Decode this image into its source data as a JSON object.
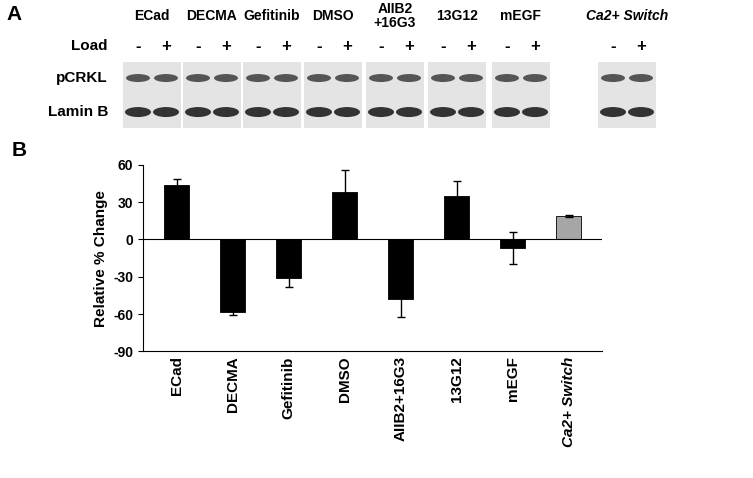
{
  "blot": {
    "panel_label": "A",
    "lanes": [
      "ECad",
      "DECMA",
      "Gefitinib",
      "DMSO",
      "AIIB2\n+16G3",
      "13G12",
      "mEGF",
      "Ca2+ Switch"
    ],
    "load_label": "Load",
    "load_states": [
      "-",
      "+"
    ],
    "rows": [
      "pCRKL",
      "Lamin B"
    ]
  },
  "chart_data": {
    "panel_label": "B",
    "type": "bar",
    "categories": [
      "ECad",
      "DECMA",
      "Gefitinib",
      "DMSO",
      "AIIB2+16G3",
      "13G12",
      "mEGF",
      "Ca2+ Switch"
    ],
    "values": [
      44,
      -58,
      -31,
      38,
      -48,
      35,
      -7,
      19
    ],
    "errors": [
      5,
      3,
      7,
      18,
      14,
      12,
      13,
      1
    ],
    "colors": [
      "#000000",
      "#000000",
      "#000000",
      "#000000",
      "#000000",
      "#000000",
      "#000000",
      "#a6a6a6"
    ],
    "y_label": "Relative % Change",
    "ylim": [
      -90,
      60
    ],
    "yticks": [
      -90,
      -60,
      -30,
      0,
      30,
      60
    ]
  }
}
